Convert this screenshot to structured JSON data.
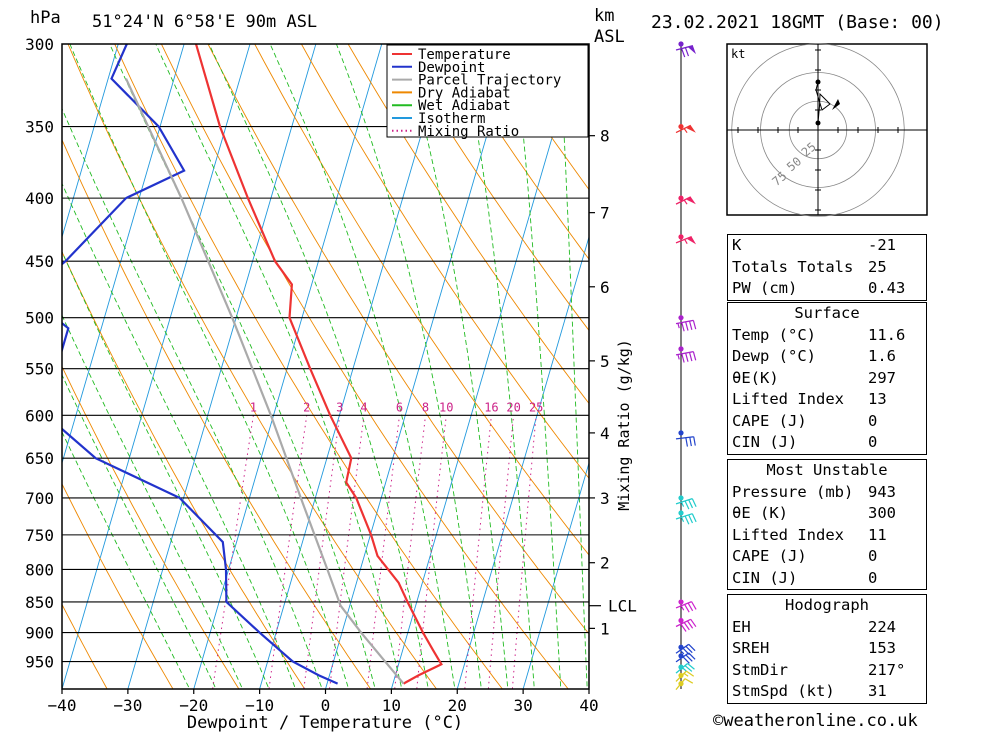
{
  "header": {
    "pressure_unit": "hPa",
    "location": "51°24'N  6°58'E  90m  ASL",
    "height_unit_top": "km",
    "height_unit_bottom": "ASL",
    "datetime": "23.02.2021  18GMT  (Base: 00)"
  },
  "footer": {
    "copyright": "©weatheronline.co.uk"
  },
  "chart_data": {
    "type": "skew-t",
    "xlabel": "Dewpoint / Temperature (°C)",
    "ylabel": "hPa",
    "mixing_ratio_axis_label": "Mixing Ratio (g/kg)",
    "x_ticks": [
      -40,
      -30,
      -20,
      -10,
      0,
      10,
      20,
      30,
      40
    ],
    "y_ticks": [
      300,
      350,
      400,
      450,
      500,
      550,
      600,
      650,
      700,
      750,
      800,
      850,
      900,
      950
    ],
    "ylim": [
      1000,
      300
    ],
    "xlim": [
      -40,
      40
    ],
    "km_ticks": [
      {
        "km": "1",
        "p": 893
      },
      {
        "km": "2",
        "p": 790
      },
      {
        "km": "3",
        "p": 700
      },
      {
        "km": "4",
        "p": 620
      },
      {
        "km": "5",
        "p": 542
      },
      {
        "km": "6",
        "p": 472
      },
      {
        "km": "7",
        "p": 411
      },
      {
        "km": "8",
        "p": 356
      }
    ],
    "lcl": {
      "label": "LCL",
      "p": 856
    },
    "mixing_ratio_labels": [
      "1",
      "2",
      "3",
      "4",
      "6",
      "8",
      "10",
      "16",
      "20",
      "25"
    ],
    "mixing_ratio_label_pressure": 600,
    "legend": [
      {
        "name": "Temperature",
        "color": "#ee3333",
        "style": "solid"
      },
      {
        "name": "Dewpoint",
        "color": "#2233cc",
        "style": "solid"
      },
      {
        "name": "Parcel Trajectory",
        "color": "#aaaaaa",
        "style": "solid"
      },
      {
        "name": "Dry Adiabat",
        "color": "#ee8800",
        "style": "solid"
      },
      {
        "name": "Wet Adiabat",
        "color": "#22bb22",
        "style": "solid"
      },
      {
        "name": "Isotherm",
        "color": "#2299dd",
        "style": "solid"
      },
      {
        "name": "Mixing Ratio",
        "color": "#cc2288",
        "style": "dotted"
      }
    ],
    "series": [
      {
        "name": "Temperature",
        "points": [
          {
            "p": 990,
            "t": 11.6
          },
          {
            "p": 975,
            "t": 13.5
          },
          {
            "p": 955,
            "t": 16.5
          },
          {
            "p": 930,
            "t": 14.6
          },
          {
            "p": 900,
            "t": 12.3
          },
          {
            "p": 870,
            "t": 10.1
          },
          {
            "p": 850,
            "t": 8.6
          },
          {
            "p": 820,
            "t": 6.4
          },
          {
            "p": 780,
            "t": 2.0
          },
          {
            "p": 750,
            "t": 0.1
          },
          {
            "p": 700,
            "t": -3.8
          },
          {
            "p": 680,
            "t": -6.0
          },
          {
            "p": 650,
            "t": -6.3
          },
          {
            "p": 600,
            "t": -11.4
          },
          {
            "p": 550,
            "t": -16.5
          },
          {
            "p": 500,
            "t": -21.9
          },
          {
            "p": 470,
            "t": -23.0
          },
          {
            "p": 450,
            "t": -26.6
          },
          {
            "p": 400,
            "t": -33.5
          },
          {
            "p": 350,
            "t": -40.9
          },
          {
            "p": 300,
            "t": -48.2
          }
        ]
      },
      {
        "name": "Dewpoint",
        "points": [
          {
            "p": 990,
            "t": 1.6
          },
          {
            "p": 975,
            "t": -1.6
          },
          {
            "p": 950,
            "t": -6.2
          },
          {
            "p": 900,
            "t": -12.5
          },
          {
            "p": 850,
            "t": -18.9
          },
          {
            "p": 800,
            "t": -20.4
          },
          {
            "p": 760,
            "t": -22.1
          },
          {
            "p": 700,
            "t": -30.6
          },
          {
            "p": 650,
            "t": -45.1
          },
          {
            "p": 600,
            "t": -54.5
          },
          {
            "p": 550,
            "t": -55.0
          },
          {
            "p": 510,
            "t": -55.0
          },
          {
            "p": 500,
            "t": -57.5
          },
          {
            "p": 470,
            "t": -61.7
          },
          {
            "p": 450,
            "t": -58.4
          },
          {
            "p": 400,
            "t": -52.0
          },
          {
            "p": 380,
            "t": -44.4
          },
          {
            "p": 350,
            "t": -50.2
          },
          {
            "p": 320,
            "t": -59.5
          },
          {
            "p": 300,
            "t": -58.7
          }
        ]
      },
      {
        "name": "Parcel Trajectory",
        "points": [
          {
            "p": 990,
            "t": 11.6
          },
          {
            "p": 900,
            "t": 2.9
          },
          {
            "p": 856,
            "t": -1.4
          },
          {
            "p": 800,
            "t": -5.0
          },
          {
            "p": 700,
            "t": -12.2
          },
          {
            "p": 600,
            "t": -20.4
          },
          {
            "p": 500,
            "t": -30.6
          },
          {
            "p": 400,
            "t": -43.6
          },
          {
            "p": 350,
            "t": -51.8
          },
          {
            "p": 320,
            "t": -57.3
          }
        ]
      }
    ],
    "wind_barbs": [
      {
        "p": 990,
        "color": "#ddcc22",
        "dir": 210,
        "kt": 10
      },
      {
        "p": 975,
        "color": "#ddcc22",
        "dir": 215,
        "kt": 15
      },
      {
        "p": 960,
        "color": "#22cccc",
        "dir": 220,
        "kt": 25
      },
      {
        "p": 940,
        "color": "#2244cc",
        "dir": 225,
        "kt": 30
      },
      {
        "p": 925,
        "color": "#2244cc",
        "dir": 225,
        "kt": 35
      },
      {
        "p": 880,
        "color": "#cc22cc",
        "dir": 235,
        "kt": 40
      },
      {
        "p": 850,
        "color": "#cc22cc",
        "dir": 240,
        "kt": 35
      },
      {
        "p": 720,
        "color": "#22cccc",
        "dir": 245,
        "kt": 35
      },
      {
        "p": 700,
        "color": "#22cccc",
        "dir": 245,
        "kt": 35
      },
      {
        "p": 620,
        "color": "#2244cc",
        "dir": 260,
        "kt": 30
      },
      {
        "p": 530,
        "color": "#aa22cc",
        "dir": 255,
        "kt": 45
      },
      {
        "p": 500,
        "color": "#aa22cc",
        "dir": 255,
        "kt": 45
      },
      {
        "p": 430,
        "color": "#ee2266",
        "dir": 240,
        "kt": 55
      },
      {
        "p": 400,
        "color": "#ee2266",
        "dir": 235,
        "kt": 55
      },
      {
        "p": 350,
        "color": "#ee3333",
        "dir": 235,
        "kt": 55
      },
      {
        "p": 300,
        "color": "#7722cc",
        "dir": 250,
        "kt": 70
      }
    ],
    "hodograph": {
      "unit_label": "kt",
      "ring_labels": [
        "25",
        "50",
        "75"
      ],
      "points": [
        {
          "u": 0,
          "v": 7
        },
        {
          "u": 1.5,
          "v": 24
        },
        {
          "u": 2,
          "v": 36
        },
        {
          "u": 12,
          "v": 26
        },
        {
          "u": 4,
          "v": 20
        },
        {
          "u": -2,
          "v": 40
        },
        {
          "u": 0,
          "v": 48
        }
      ]
    },
    "indices": {
      "rows": [
        {
          "label": "K",
          "value": "-21"
        },
        {
          "label": "Totals Totals",
          "value": "25"
        },
        {
          "label": "PW (cm)",
          "value": "0.43"
        }
      ]
    },
    "surface": {
      "title": "Surface",
      "rows": [
        {
          "label": "Temp (°C)",
          "value": "11.6"
        },
        {
          "label": "Dewp (°C)",
          "value": "1.6"
        },
        {
          "label": "θE(K)",
          "value": "297"
        },
        {
          "label": "Lifted Index",
          "value": "13"
        },
        {
          "label": "CAPE (J)",
          "value": "0"
        },
        {
          "label": "CIN (J)",
          "value": "0"
        }
      ]
    },
    "most_unstable": {
      "title": "Most Unstable",
      "rows": [
        {
          "label": "Pressure (mb)",
          "value": "943"
        },
        {
          "label": "θE (K)",
          "value": "300"
        },
        {
          "label": "Lifted Index",
          "value": "11"
        },
        {
          "label": "CAPE (J)",
          "value": "0"
        },
        {
          "label": "CIN (J)",
          "value": "0"
        }
      ]
    },
    "hodograph_params": {
      "title": "Hodograph",
      "rows": [
        {
          "label": "EH",
          "value": "224"
        },
        {
          "label": "SREH",
          "value": "153"
        },
        {
          "label": "StmDir",
          "value": "217°"
        },
        {
          "label": "StmSpd (kt)",
          "value": "31"
        }
      ]
    }
  }
}
